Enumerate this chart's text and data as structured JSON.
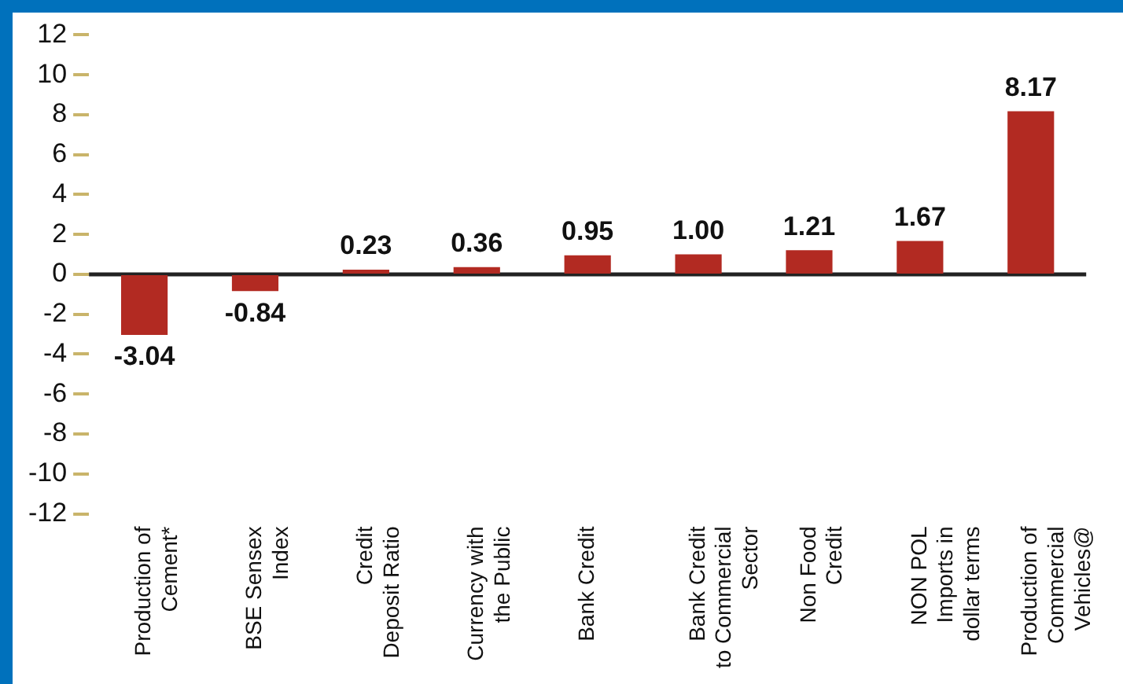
{
  "chart_data": {
    "type": "bar",
    "categories": [
      "Production of Cement*",
      "BSE Sensex Index",
      "Credit Deposit Ratio",
      "Currency with the Public",
      "Bank Credit",
      "Bank Credit to Commercial Sector",
      "Non Food Credit",
      "NON POL Imports in dollar terms",
      "Production of Commercial Vehicles@"
    ],
    "values": [
      -3.04,
      -0.84,
      0.23,
      0.36,
      0.95,
      1.0,
      1.21,
      1.67,
      8.17
    ],
    "value_labels": [
      "-3.04",
      "-0.84",
      "0.23",
      "0.36",
      "0.95",
      "1.00",
      "1.21",
      "1.67",
      "8.17"
    ],
    "color": "#b22a22",
    "ylim": [
      -12,
      12
    ],
    "yticks": [
      -12,
      -10,
      -8,
      -6,
      -4,
      -2,
      0,
      2,
      4,
      6,
      8,
      10,
      12
    ],
    "ref_lines": [
      {
        "axis": "y",
        "value": 0,
        "color": "#222222",
        "line_style": "solid"
      }
    ],
    "grid": false,
    "legend": false
  }
}
